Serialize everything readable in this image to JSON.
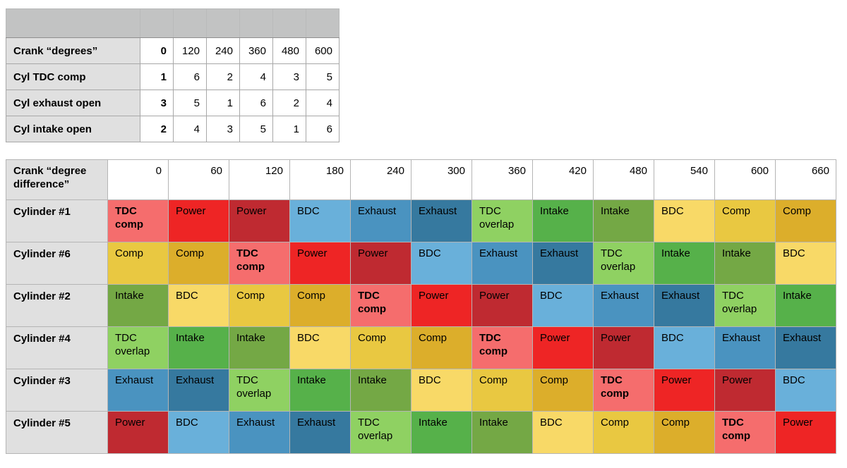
{
  "top_table": {
    "rows": [
      {
        "label": "Crank “degrees”",
        "values": [
          "0",
          "120",
          "240",
          "360",
          "480",
          "600"
        ]
      },
      {
        "label": "Cyl TDC comp",
        "values": [
          "1",
          "6",
          "2",
          "4",
          "3",
          "5"
        ]
      },
      {
        "label": "Cyl exhaust open",
        "values": [
          "3",
          "5",
          "1",
          "6",
          "2",
          "4"
        ]
      },
      {
        "label": "Cyl intake open",
        "values": [
          "2",
          "4",
          "3",
          "5",
          "1",
          "6"
        ]
      }
    ]
  },
  "phase_table": {
    "corner_label": "Crank “degree difference”",
    "columns": [
      "0",
      "60",
      "120",
      "180",
      "240",
      "300",
      "360",
      "420",
      "480",
      "540",
      "600",
      "660"
    ],
    "phase_cycle": [
      {
        "label": "TDC comp",
        "color": "#f56d6d",
        "bold": true
      },
      {
        "label": "Power",
        "color": "#ee2525",
        "bold": false
      },
      {
        "label": "Power",
        "color": "#bf2a31",
        "bold": false
      },
      {
        "label": "BDC",
        "color": "#69b0da",
        "bold": false
      },
      {
        "label": "Exhaust",
        "color": "#4a93c0",
        "bold": false
      },
      {
        "label": "Exhaust",
        "color": "#36799f",
        "bold": false
      },
      {
        "label": "TDC overlap",
        "color": "#8fd162",
        "bold": false
      },
      {
        "label": "Intake",
        "color": "#56b14a",
        "bold": false
      },
      {
        "label": "Intake",
        "color": "#74a845",
        "bold": false
      },
      {
        "label": "BDC",
        "color": "#f8d967",
        "bold": false
      },
      {
        "label": "Comp",
        "color": "#e9c841",
        "bold": false
      },
      {
        "label": "Comp",
        "color": "#dcae2b",
        "bold": false
      }
    ],
    "rows": [
      {
        "label": "Cylinder #1",
        "cells": [
          "TDC comp",
          "Power",
          "Power",
          "BDC",
          "Exhaust",
          "Exhaust",
          "TDC overlap",
          "Intake",
          "Intake",
          "BDC",
          "Comp",
          "Comp"
        ],
        "phase_indices": [
          0,
          1,
          2,
          3,
          4,
          5,
          6,
          7,
          8,
          9,
          10,
          11
        ]
      },
      {
        "label": "Cylinder #6",
        "cells": [
          "Comp",
          "Comp",
          "TDC comp",
          "Power",
          "Power",
          "BDC",
          "Exhaust",
          "Exhaust",
          "TDC overlap",
          "Intake",
          "Intake",
          "BDC"
        ],
        "phase_indices": [
          10,
          11,
          0,
          1,
          2,
          3,
          4,
          5,
          6,
          7,
          8,
          9
        ]
      },
      {
        "label": "Cylinder #2",
        "cells": [
          "Intake",
          "BDC",
          "Comp",
          "Comp",
          "TDC comp",
          "Power",
          "Power",
          "BDC",
          "Exhaust",
          "Exhaust",
          "TDC overlap",
          "Intake"
        ],
        "phase_indices": [
          8,
          9,
          10,
          11,
          0,
          1,
          2,
          3,
          4,
          5,
          6,
          7
        ]
      },
      {
        "label": "Cylinder #4",
        "cells": [
          "TDC overlap",
          "Intake",
          "Intake",
          "BDC",
          "Comp",
          "Comp",
          "TDC comp",
          "Power",
          "Power",
          "BDC",
          "Exhaust",
          "Exhaust"
        ],
        "phase_indices": [
          6,
          7,
          8,
          9,
          10,
          11,
          0,
          1,
          2,
          3,
          4,
          5
        ]
      },
      {
        "label": "Cylinder #3",
        "cells": [
          "Exhaust",
          "Exhaust",
          "TDC overlap",
          "Intake",
          "Intake",
          "BDC",
          "Comp",
          "Comp",
          "TDC comp",
          "Power",
          "Power",
          "BDC"
        ],
        "phase_indices": [
          4,
          5,
          6,
          7,
          8,
          9,
          10,
          11,
          0,
          1,
          2,
          3
        ]
      },
      {
        "label": "Cylinder #5",
        "cells": [
          "Power",
          "BDC",
          "Exhaust",
          "Exhaust",
          "TDC overlap",
          "Intake",
          "Intake",
          "BDC",
          "Comp",
          "Comp",
          "TDC comp",
          "Power"
        ],
        "phase_indices": [
          2,
          3,
          4,
          5,
          6,
          7,
          8,
          9,
          10,
          11,
          0,
          1
        ]
      }
    ]
  },
  "colors": {
    "header_band": "#c2c3c3",
    "label_column": "#e0e0e0",
    "grid_border": "#b5b5b5",
    "text": "#000000",
    "background": "#ffffff"
  }
}
